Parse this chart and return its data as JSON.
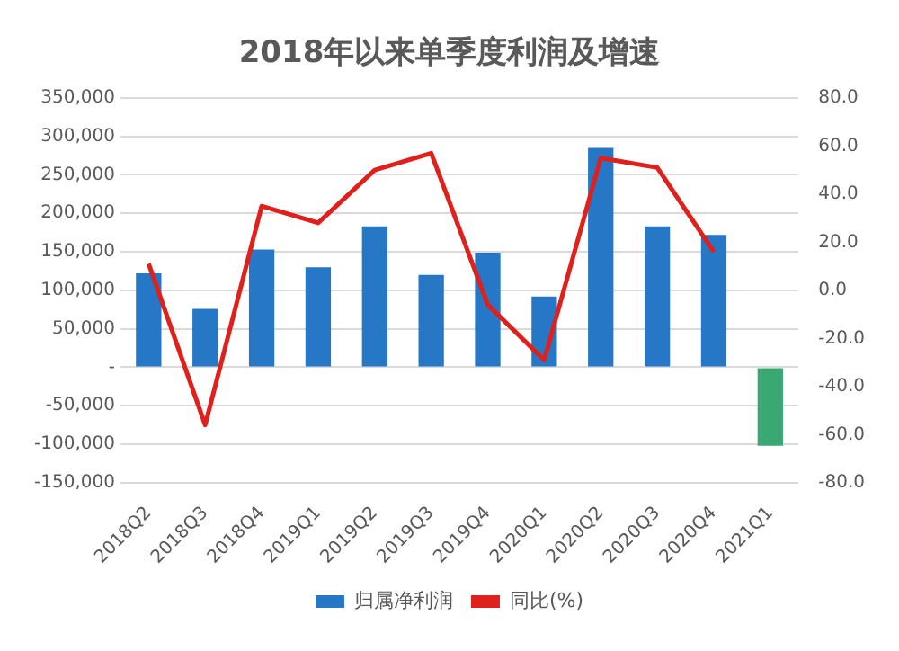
{
  "chart_data": {
    "type": "bar",
    "title": "2018年以来单季度利润及增速",
    "categories": [
      "2018Q2",
      "2018Q3",
      "2018Q4",
      "2019Q1",
      "2019Q2",
      "2019Q3",
      "2019Q4",
      "2020Q1",
      "2020Q2",
      "2020Q3",
      "2020Q4",
      "2021Q1"
    ],
    "series": [
      {
        "name": "归属净利润",
        "color": "#2677c6",
        "colors": [
          "#2677c6",
          "#2677c6",
          "#2677c6",
          "#2677c6",
          "#2677c6",
          "#2677c6",
          "#2677c6",
          "#2677c6",
          "#2677c6",
          "#2677c6",
          "#2677c6",
          "#3aa872"
        ],
        "values": [
          122000,
          76000,
          153000,
          130000,
          183000,
          120000,
          149000,
          92000,
          285000,
          183000,
          172000,
          -102000
        ]
      },
      {
        "name": "同比(%)",
        "type": "line",
        "axis": "y2",
        "color": "#e0201b",
        "values": [
          11,
          -56,
          35,
          28,
          50,
          57,
          -6,
          -29,
          55,
          51,
          16,
          null
        ]
      }
    ],
    "ylim": [
      -150000,
      350000
    ],
    "yticks": [
      {
        "value": -150000,
        "label": "-150,000"
      },
      {
        "value": -100000,
        "label": "-100,000"
      },
      {
        "value": -50000,
        "label": "-50,000"
      },
      {
        "value": 0,
        "label": "-"
      },
      {
        "value": 50000,
        "label": "50,000"
      },
      {
        "value": 100000,
        "label": "100,000"
      },
      {
        "value": 150000,
        "label": "150,000"
      },
      {
        "value": 200000,
        "label": "200,000"
      },
      {
        "value": 250000,
        "label": "250,000"
      },
      {
        "value": 300000,
        "label": "300,000"
      },
      {
        "value": 350000,
        "label": "350,000"
      }
    ],
    "y2lim": [
      -80,
      80
    ],
    "y2ticks": [
      {
        "value": -80,
        "label": "-80.0"
      },
      {
        "value": -60,
        "label": "-60.0"
      },
      {
        "value": -40,
        "label": "-40.0"
      },
      {
        "value": -20,
        "label": "-20.0"
      },
      {
        "value": 0,
        "label": "0.0"
      },
      {
        "value": 20,
        "label": "20.0"
      },
      {
        "value": 40,
        "label": "40.0"
      },
      {
        "value": 60,
        "label": "60.0"
      },
      {
        "value": 80,
        "label": "80.0"
      }
    ],
    "grid": "y",
    "legend": "bottom",
    "marker": "none",
    "line_style": "solid"
  }
}
